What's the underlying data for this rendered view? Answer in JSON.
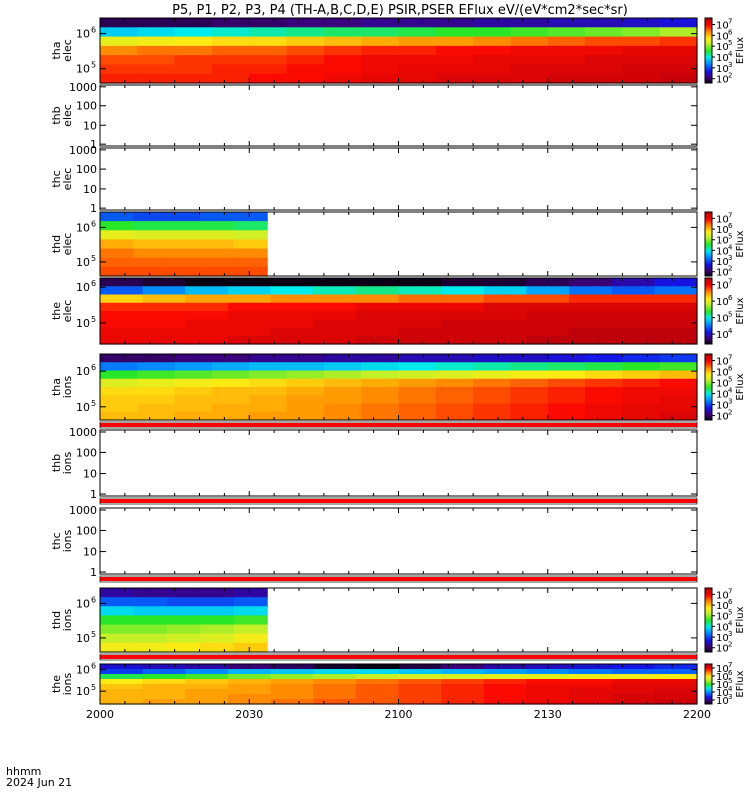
{
  "title": "P5, P1, P2, P3, P4 (TH-A,B,C,D,E) PSIR,PSER EFlux eV/(eV*cm2*sec*sr)",
  "footer": {
    "time_label": "hhmm",
    "date_label": "2024 Jun 21"
  },
  "colorbar_label": "EFlux",
  "colors": {
    "red_band": "#ff0000",
    "white": "#ffffff",
    "black": "#000000"
  },
  "chart_data": {
    "type": "heatmap",
    "x_ticks": [
      "2000",
      "2030",
      "2100",
      "2130",
      "2200"
    ],
    "x_tick_values": [
      0,
      30,
      60,
      90,
      120
    ],
    "x_range": [
      0,
      120
    ],
    "panels": [
      {
        "id": "tha-elec",
        "label": [
          "tha",
          "elec"
        ],
        "y_ticks": [
          "10",
          "10"
        ],
        "y_tick_exp": [
          "6",
          "5"
        ],
        "y_tick_frac": [
          0.76,
          0.22
        ],
        "data_cols": 16,
        "data_rows": 7,
        "coverage": 1.0,
        "has_colorbar": true,
        "cbar_ticks": [
          "10",
          "10",
          "10",
          "10",
          "10",
          "10"
        ],
        "cbar_tick_exp": [
          "7",
          "6",
          "5",
          "4",
          "3",
          "2"
        ],
        "cbar_range_log": [
          1.6,
          7.6
        ],
        "log_eflux_range": [
          1.6,
          7.6
        ],
        "grid_log_eflux": [
          [
            1.9,
            1.9,
            1.9,
            2.0,
            2.0,
            2.1,
            2.1,
            2.2,
            2.2,
            2.2,
            2.3,
            2.3,
            2.4,
            2.4,
            2.5,
            2.6
          ],
          [
            3.8,
            3.9,
            4.0,
            4.1,
            4.2,
            4.3,
            4.4,
            4.4,
            4.5,
            4.6,
            4.6,
            4.7,
            4.8,
            4.9,
            5.0,
            5.2
          ],
          [
            5.6,
            5.7,
            5.8,
            5.9,
            5.9,
            6.0,
            6.1,
            6.2,
            6.3,
            6.3,
            6.4,
            6.5,
            6.6,
            6.7,
            6.7,
            6.8
          ],
          [
            6.4,
            6.5,
            6.5,
            6.6,
            6.6,
            6.7,
            6.8,
            6.9,
            6.9,
            7.0,
            7.0,
            7.1,
            7.1,
            7.1,
            7.2,
            7.2
          ],
          [
            6.7,
            6.7,
            6.8,
            6.8,
            6.8,
            6.9,
            7.0,
            7.1,
            7.1,
            7.1,
            7.2,
            7.2,
            7.2,
            7.3,
            7.3,
            7.3
          ],
          [
            6.8,
            6.8,
            6.8,
            6.9,
            6.9,
            7.0,
            7.0,
            7.1,
            7.2,
            7.2,
            7.2,
            7.3,
            7.3,
            7.3,
            7.4,
            7.4
          ],
          [
            6.9,
            6.9,
            6.9,
            6.9,
            7.0,
            7.0,
            7.1,
            7.2,
            7.2,
            7.3,
            7.3,
            7.3,
            7.4,
            7.4,
            7.4,
            7.5
          ]
        ]
      },
      {
        "id": "thb-elec",
        "label": [
          "thb",
          "elec"
        ],
        "y_ticks": [
          "1000",
          "100",
          "10",
          "1"
        ],
        "y_tick_frac": [
          0.97,
          0.66,
          0.34,
          0.03
        ],
        "has_colorbar": false,
        "empty": true
      },
      {
        "id": "thc-elec",
        "label": [
          "thc",
          "elec"
        ],
        "y_ticks": [
          "1000",
          "100",
          "10",
          "1"
        ],
        "y_tick_frac": [
          0.97,
          0.66,
          0.34,
          0.03
        ],
        "has_colorbar": false,
        "empty": true
      },
      {
        "id": "thd-elec",
        "label": [
          "thd",
          "elec"
        ],
        "y_ticks": [
          "10",
          "10"
        ],
        "y_tick_exp": [
          "6",
          "5"
        ],
        "y_tick_frac": [
          0.76,
          0.22
        ],
        "data_cols": 5,
        "data_rows": 7,
        "coverage": 0.28,
        "has_colorbar": true,
        "cbar_ticks": [
          "10",
          "10",
          "10",
          "10",
          "10",
          "10"
        ],
        "cbar_tick_exp": [
          "7",
          "6",
          "5",
          "4",
          "3",
          "2"
        ],
        "cbar_range_log": [
          1.6,
          7.6
        ],
        "log_eflux_range": [
          1.6,
          7.6
        ],
        "grid_log_eflux": [
          [
            3.1,
            3.0,
            3.0,
            3.1,
            3.1
          ],
          [
            4.6,
            4.5,
            4.5,
            4.5,
            4.4
          ],
          [
            5.6,
            5.5,
            5.5,
            5.5,
            5.4
          ],
          [
            6.2,
            6.1,
            6.1,
            6.1,
            6.0
          ],
          [
            6.5,
            6.4,
            6.4,
            6.4,
            6.4
          ],
          [
            6.6,
            6.6,
            6.6,
            6.6,
            6.6
          ],
          [
            6.7,
            6.7,
            6.7,
            6.7,
            6.7
          ]
        ]
      },
      {
        "id": "the-elec",
        "label": [
          "the",
          "elec"
        ],
        "y_ticks": [
          "10",
          "10"
        ],
        "y_tick_exp": [
          "6",
          "5"
        ],
        "y_tick_frac": [
          0.86,
          0.32
        ],
        "data_cols": 14,
        "data_rows": 8,
        "coverage": 1.0,
        "has_colorbar": true,
        "cbar_ticks": [
          "10",
          "10",
          "10",
          "10"
        ],
        "cbar_tick_exp": [
          "7",
          "6",
          "5",
          "4"
        ],
        "cbar_range_log": [
          3.4,
          7.4
        ],
        "log_eflux_range": [
          3.4,
          7.4
        ],
        "grid_log_eflux": [
          [
            3.6,
            3.5,
            3.4,
            3.4,
            3.4,
            3.4,
            3.4,
            3.4,
            3.5,
            3.5,
            3.6,
            3.7,
            3.9,
            4.1
          ],
          [
            4.4,
            4.6,
            4.8,
            4.9,
            5.0,
            5.1,
            5.2,
            5.1,
            5.0,
            4.9,
            4.7,
            4.5,
            4.4,
            4.5
          ],
          [
            6.3,
            6.4,
            6.5,
            6.5,
            6.6,
            6.6,
            6.6,
            6.7,
            6.7,
            6.8,
            6.8,
            6.9,
            6.9,
            6.9
          ],
          [
            6.9,
            6.9,
            6.9,
            7.0,
            7.0,
            7.0,
            7.1,
            7.1,
            7.1,
            7.2,
            7.2,
            7.2,
            7.2,
            7.2
          ],
          [
            7.0,
            7.0,
            7.0,
            7.1,
            7.1,
            7.1,
            7.2,
            7.2,
            7.2,
            7.2,
            7.3,
            7.3,
            7.3,
            7.3
          ],
          [
            7.0,
            7.0,
            7.1,
            7.1,
            7.1,
            7.2,
            7.2,
            7.2,
            7.3,
            7.3,
            7.3,
            7.3,
            7.3,
            7.3
          ],
          [
            7.1,
            7.1,
            7.1,
            7.1,
            7.2,
            7.2,
            7.2,
            7.3,
            7.3,
            7.3,
            7.3,
            7.4,
            7.4,
            7.4
          ],
          [
            7.1,
            7.1,
            7.1,
            7.2,
            7.2,
            7.2,
            7.3,
            7.3,
            7.3,
            7.3,
            7.4,
            7.4,
            7.4,
            7.4
          ]
        ]
      },
      {
        "id": "tha-ions",
        "label": [
          "tha",
          "ions"
        ],
        "y_ticks": [
          "10",
          "10"
        ],
        "y_tick_exp": [
          "6",
          "5"
        ],
        "y_tick_frac": [
          0.74,
          0.2
        ],
        "data_cols": 16,
        "data_rows": 8,
        "coverage": 1.0,
        "has_colorbar": true,
        "cbar_ticks": [
          "10",
          "10",
          "10",
          "10",
          "10",
          "10"
        ],
        "cbar_tick_exp": [
          "7",
          "6",
          "5",
          "4",
          "3",
          "2"
        ],
        "cbar_range_log": [
          1.6,
          7.6
        ],
        "log_eflux_range": [
          1.6,
          7.6
        ],
        "band_below": true,
        "grid_log_eflux": [
          [
            2.0,
            2.0,
            2.1,
            2.1,
            2.2,
            2.2,
            2.3,
            2.3,
            2.4,
            2.4,
            2.5,
            2.5,
            2.6,
            2.7,
            2.8,
            2.9
          ],
          [
            3.3,
            3.4,
            3.5,
            3.6,
            3.7,
            3.7,
            3.8,
            3.9,
            4.0,
            4.1,
            4.2,
            4.3,
            4.4,
            4.5,
            4.6,
            4.7
          ],
          [
            4.6,
            4.7,
            4.8,
            4.9,
            5.0,
            5.1,
            5.2,
            5.3,
            5.4,
            5.5,
            5.6,
            5.7,
            5.8,
            5.9,
            6.0,
            6.1
          ],
          [
            5.5,
            5.6,
            5.7,
            5.8,
            5.9,
            6.0,
            6.1,
            6.2,
            6.3,
            6.4,
            6.5,
            6.6,
            6.7,
            6.8,
            6.9,
            7.0
          ],
          [
            5.9,
            5.9,
            6.0,
            6.1,
            6.1,
            6.2,
            6.3,
            6.4,
            6.5,
            6.6,
            6.7,
            6.8,
            6.9,
            7.0,
            7.1,
            7.1
          ],
          [
            6.0,
            6.0,
            6.1,
            6.1,
            6.2,
            6.3,
            6.3,
            6.4,
            6.5,
            6.6,
            6.7,
            6.8,
            6.9,
            7.0,
            7.1,
            7.2
          ],
          [
            6.0,
            6.1,
            6.1,
            6.2,
            6.2,
            6.3,
            6.4,
            6.5,
            6.6,
            6.7,
            6.8,
            6.9,
            7.0,
            7.1,
            7.2,
            7.2
          ],
          [
            6.1,
            6.1,
            6.2,
            6.2,
            6.3,
            6.3,
            6.4,
            6.5,
            6.6,
            6.7,
            6.8,
            6.9,
            7.0,
            7.1,
            7.2,
            7.3
          ]
        ]
      },
      {
        "id": "thb-ions",
        "label": [
          "thb",
          "ions"
        ],
        "y_ticks": [
          "1000",
          "100",
          "10",
          "1"
        ],
        "y_tick_frac": [
          0.97,
          0.66,
          0.34,
          0.03
        ],
        "has_colorbar": false,
        "empty": true,
        "band_below": true
      },
      {
        "id": "thc-ions",
        "label": [
          "thc",
          "ions"
        ],
        "y_ticks": [
          "1000",
          "100",
          "10",
          "1"
        ],
        "y_tick_frac": [
          0.97,
          0.66,
          0.34,
          0.03
        ],
        "has_colorbar": false,
        "empty": true,
        "band_below": true
      },
      {
        "id": "thd-ions",
        "label": [
          "thd",
          "ions"
        ],
        "y_ticks": [
          "10",
          "10"
        ],
        "y_tick_exp": [
          "6",
          "5"
        ],
        "y_tick_frac": [
          0.76,
          0.22
        ],
        "data_cols": 5,
        "data_rows": 7,
        "coverage": 0.28,
        "has_colorbar": true,
        "cbar_ticks": [
          "10",
          "10",
          "10",
          "10",
          "10",
          "10"
        ],
        "cbar_tick_exp": [
          "7",
          "6",
          "5",
          "4",
          "3",
          "2"
        ],
        "cbar_range_log": [
          1.6,
          7.6
        ],
        "log_eflux_range": [
          1.6,
          7.6
        ],
        "band_below": true,
        "grid_log_eflux": [
          [
            2.3,
            2.2,
            2.2,
            2.2,
            2.3
          ],
          [
            3.1,
            3.1,
            3.0,
            3.0,
            3.1
          ],
          [
            3.9,
            3.8,
            3.8,
            3.8,
            3.9
          ],
          [
            4.6,
            4.6,
            4.6,
            4.6,
            4.7
          ],
          [
            5.0,
            5.0,
            5.1,
            5.2,
            5.3
          ],
          [
            5.3,
            5.3,
            5.4,
            5.5,
            5.7
          ],
          [
            5.7,
            5.7,
            5.8,
            5.9,
            6.0
          ]
        ]
      },
      {
        "id": "the-ions",
        "label": [
          "the",
          "ions"
        ],
        "y_ticks": [
          "10",
          "10"
        ],
        "y_tick_exp": [
          "6",
          "5"
        ],
        "y_tick_frac": [
          0.86,
          0.32
        ],
        "data_cols": 14,
        "data_rows": 8,
        "coverage": 1.0,
        "has_colorbar": true,
        "cbar_ticks": [
          "10",
          "10",
          "10",
          "10",
          "10"
        ],
        "cbar_tick_exp": [
          "7",
          "6",
          "5",
          "4",
          "3"
        ],
        "cbar_range_log": [
          2.5,
          7.5
        ],
        "log_eflux_range": [
          2.5,
          7.5
        ],
        "grid_log_eflux": [
          [
            3.3,
            3.2,
            3.1,
            2.9,
            2.8,
            2.6,
            2.5,
            2.7,
            2.9,
            3.1,
            3.2,
            3.3,
            3.4,
            3.5
          ],
          [
            3.6,
            3.8,
            4.0,
            4.2,
            4.3,
            4.4,
            4.4,
            4.3,
            4.2,
            4.1,
            4.0,
            3.9,
            3.8,
            3.8
          ],
          [
            4.9,
            5.0,
            5.1,
            5.3,
            5.4,
            5.5,
            5.6,
            5.7,
            5.7,
            5.8,
            5.8,
            5.9,
            5.9,
            6.0
          ],
          [
            6.0,
            6.1,
            6.2,
            6.3,
            6.4,
            6.5,
            6.6,
            6.7,
            6.8,
            6.9,
            7.0,
            7.0,
            7.1,
            7.1
          ],
          [
            6.2,
            6.3,
            6.3,
            6.4,
            6.5,
            6.6,
            6.7,
            6.8,
            6.9,
            7.0,
            7.1,
            7.1,
            7.2,
            7.2
          ],
          [
            6.3,
            6.3,
            6.4,
            6.4,
            6.5,
            6.6,
            6.7,
            6.8,
            6.9,
            7.0,
            7.1,
            7.2,
            7.2,
            7.3
          ],
          [
            6.3,
            6.3,
            6.4,
            6.5,
            6.5,
            6.6,
            6.7,
            6.8,
            6.9,
            7.0,
            7.1,
            7.2,
            7.3,
            7.3
          ],
          [
            6.3,
            6.4,
            6.4,
            6.5,
            6.6,
            6.7,
            6.7,
            6.8,
            6.9,
            7.0,
            7.1,
            7.2,
            7.3,
            7.4
          ]
        ]
      }
    ]
  }
}
